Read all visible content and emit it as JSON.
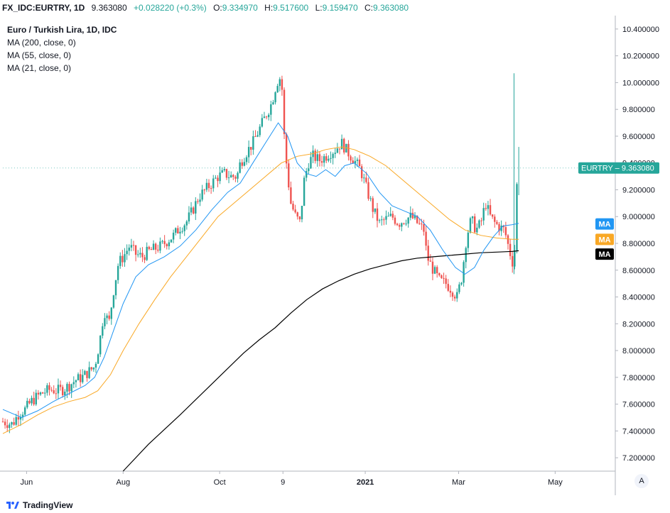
{
  "header": {
    "symbol": "FX_IDC:EURTRY, 1D",
    "last": "9.363080",
    "change": "+0.028220 (+0.3%)",
    "open_label": "O:",
    "open": "9.334970",
    "high_label": "H:",
    "high": "9.517600",
    "low_label": "L:",
    "low": "9.159470",
    "close_label": "C:",
    "close": "9.363080"
  },
  "legend": {
    "title": "Euro / Turkish Lira, 1D, IDC",
    "items": [
      "MA (200, close, 0)",
      "MA (55, close, 0)",
      "MA (21, close, 0)"
    ]
  },
  "footer": {
    "brand": "TradingView",
    "auto_btn": "A"
  },
  "colors": {
    "up": "#26a69a",
    "down": "#ef5350",
    "ma21": "#2196f3",
    "ma55": "#f9a825",
    "ma200": "#000000"
  },
  "chart_data": {
    "type": "candlestick",
    "ylim": [
      7.1,
      10.5
    ],
    "y_ticks": [
      "7.200000",
      "7.400000",
      "7.600000",
      "7.800000",
      "8.000000",
      "8.200000",
      "8.400000",
      "8.600000",
      "8.800000",
      "9.000000",
      "9.200000",
      "9.400000",
      "9.600000",
      "9.800000",
      "10.000000",
      "10.200000",
      "10.400000"
    ],
    "x_ticks": [
      {
        "label": "Jun",
        "day": 23
      },
      {
        "label": "Aug",
        "day": 84
      },
      {
        "label": "Oct",
        "day": 145
      },
      {
        "label": "9",
        "day": 185
      },
      {
        "label": "2021",
        "day": 237
      },
      {
        "label": "Mar",
        "day": 296
      },
      {
        "label": "May",
        "day": 357
      }
    ],
    "x_range": [
      8,
      395
    ],
    "last_price": {
      "label": "EURTRY",
      "value": "9.363080",
      "y": 9.363
    },
    "ma_tags": [
      {
        "label": "MA",
        "y": 8.945,
        "color": "#2196f3"
      },
      {
        "label": "MA",
        "y": 8.83,
        "color": "#f9a825"
      },
      {
        "label": "MA",
        "y": 8.72,
        "color": "#000000"
      }
    ],
    "price_path": [
      [
        8,
        7.47
      ],
      [
        14,
        7.45
      ],
      [
        18,
        7.53
      ],
      [
        22,
        7.56
      ],
      [
        26,
        7.62
      ],
      [
        30,
        7.66
      ],
      [
        34,
        7.69
      ],
      [
        38,
        7.71
      ],
      [
        42,
        7.7
      ],
      [
        46,
        7.71
      ],
      [
        50,
        7.74
      ],
      [
        54,
        7.78
      ],
      [
        58,
        7.8
      ],
      [
        62,
        7.84
      ],
      [
        66,
        7.88
      ],
      [
        69,
        8.05
      ],
      [
        72,
        8.3
      ],
      [
        75,
        8.2
      ],
      [
        78,
        8.45
      ],
      [
        81,
        8.65
      ],
      [
        84,
        8.7
      ],
      [
        88,
        8.78
      ],
      [
        92,
        8.72
      ],
      [
        96,
        8.7
      ],
      [
        100,
        8.74
      ],
      [
        104,
        8.76
      ],
      [
        108,
        8.78
      ],
      [
        112,
        8.82
      ],
      [
        116,
        8.86
      ],
      [
        120,
        8.92
      ],
      [
        124,
        8.96
      ],
      [
        128,
        9.05
      ],
      [
        132,
        9.15
      ],
      [
        136,
        9.2
      ],
      [
        140,
        9.25
      ],
      [
        144,
        9.3
      ],
      [
        148,
        9.32
      ],
      [
        152,
        9.3
      ],
      [
        156,
        9.3
      ],
      [
        158,
        9.4
      ],
      [
        162,
        9.48
      ],
      [
        166,
        9.55
      ],
      [
        170,
        9.65
      ],
      [
        174,
        9.75
      ],
      [
        178,
        9.85
      ],
      [
        181,
        10.0
      ],
      [
        184,
        10.05
      ],
      [
        186,
        9.55
      ],
      [
        188,
        9.3
      ],
      [
        190,
        9.1
      ],
      [
        193,
        9.0
      ],
      [
        196,
        8.95
      ],
      [
        198,
        9.25
      ],
      [
        201,
        9.4
      ],
      [
        204,
        9.45
      ],
      [
        208,
        9.42
      ],
      [
        212,
        9.45
      ],
      [
        215,
        9.48
      ],
      [
        218,
        9.5
      ],
      [
        222,
        9.55
      ],
      [
        226,
        9.48
      ],
      [
        230,
        9.42
      ],
      [
        234,
        9.35
      ],
      [
        238,
        9.2
      ],
      [
        242,
        9.05
      ],
      [
        246,
        8.95
      ],
      [
        250,
        8.98
      ],
      [
        254,
        9.0
      ],
      [
        258,
        8.95
      ],
      [
        262,
        8.98
      ],
      [
        266,
        9.0
      ],
      [
        270,
        8.95
      ],
      [
        274,
        8.9
      ],
      [
        276,
        8.7
      ],
      [
        280,
        8.6
      ],
      [
        284,
        8.52
      ],
      [
        288,
        8.5
      ],
      [
        292,
        8.45
      ],
      [
        295,
        8.4
      ],
      [
        298,
        8.55
      ],
      [
        301,
        8.85
      ],
      [
        304,
        8.98
      ],
      [
        307,
        8.9
      ],
      [
        310,
        8.95
      ],
      [
        313,
        9.1
      ],
      [
        316,
        9.0
      ],
      [
        319,
        8.95
      ],
      [
        322,
        8.92
      ],
      [
        325,
        8.9
      ],
      [
        328,
        8.75
      ],
      [
        331,
        8.62
      ],
      [
        333,
        9.3
      ],
      [
        334,
        9.36
      ]
    ],
    "ma21_path": [
      [
        8,
        7.56
      ],
      [
        20,
        7.5
      ],
      [
        30,
        7.55
      ],
      [
        40,
        7.62
      ],
      [
        50,
        7.68
      ],
      [
        60,
        7.74
      ],
      [
        66,
        7.8
      ],
      [
        72,
        7.95
      ],
      [
        78,
        8.15
      ],
      [
        84,
        8.35
      ],
      [
        92,
        8.55
      ],
      [
        100,
        8.64
      ],
      [
        110,
        8.7
      ],
      [
        120,
        8.78
      ],
      [
        130,
        8.9
      ],
      [
        140,
        9.05
      ],
      [
        150,
        9.18
      ],
      [
        158,
        9.25
      ],
      [
        166,
        9.4
      ],
      [
        174,
        9.55
      ],
      [
        182,
        9.7
      ],
      [
        188,
        9.6
      ],
      [
        194,
        9.4
      ],
      [
        200,
        9.32
      ],
      [
        206,
        9.3
      ],
      [
        212,
        9.35
      ],
      [
        218,
        9.3
      ],
      [
        224,
        9.38
      ],
      [
        230,
        9.4
      ],
      [
        238,
        9.32
      ],
      [
        246,
        9.18
      ],
      [
        254,
        9.08
      ],
      [
        262,
        9.04
      ],
      [
        270,
        9.0
      ],
      [
        278,
        8.9
      ],
      [
        286,
        8.75
      ],
      [
        294,
        8.62
      ],
      [
        300,
        8.57
      ],
      [
        306,
        8.62
      ],
      [
        312,
        8.75
      ],
      [
        318,
        8.85
      ],
      [
        324,
        8.93
      ],
      [
        330,
        8.94
      ],
      [
        334,
        8.95
      ]
    ],
    "ma55_path": [
      [
        8,
        7.38
      ],
      [
        20,
        7.45
      ],
      [
        30,
        7.52
      ],
      [
        40,
        7.58
      ],
      [
        50,
        7.62
      ],
      [
        60,
        7.65
      ],
      [
        68,
        7.7
      ],
      [
        76,
        7.82
      ],
      [
        84,
        8.0
      ],
      [
        94,
        8.2
      ],
      [
        104,
        8.38
      ],
      [
        114,
        8.55
      ],
      [
        124,
        8.7
      ],
      [
        134,
        8.85
      ],
      [
        144,
        9.0
      ],
      [
        154,
        9.1
      ],
      [
        164,
        9.2
      ],
      [
        174,
        9.3
      ],
      [
        184,
        9.4
      ],
      [
        194,
        9.45
      ],
      [
        204,
        9.47
      ],
      [
        212,
        9.5
      ],
      [
        222,
        9.52
      ],
      [
        230,
        9.5
      ],
      [
        240,
        9.45
      ],
      [
        250,
        9.38
      ],
      [
        260,
        9.28
      ],
      [
        270,
        9.18
      ],
      [
        280,
        9.08
      ],
      [
        290,
        8.98
      ],
      [
        300,
        8.9
      ],
      [
        310,
        8.86
      ],
      [
        320,
        8.84
      ],
      [
        330,
        8.83
      ],
      [
        334,
        8.83
      ]
    ],
    "ma200_path": [
      [
        84,
        7.1
      ],
      [
        100,
        7.3
      ],
      [
        120,
        7.52
      ],
      [
        140,
        7.75
      ],
      [
        160,
        7.98
      ],
      [
        170,
        8.08
      ],
      [
        180,
        8.17
      ],
      [
        190,
        8.28
      ],
      [
        200,
        8.38
      ],
      [
        210,
        8.46
      ],
      [
        220,
        8.52
      ],
      [
        230,
        8.57
      ],
      [
        240,
        8.61
      ],
      [
        250,
        8.64
      ],
      [
        260,
        8.67
      ],
      [
        270,
        8.69
      ],
      [
        280,
        8.7
      ],
      [
        290,
        8.71
      ],
      [
        300,
        8.72
      ],
      [
        310,
        8.73
      ],
      [
        320,
        8.735
      ],
      [
        330,
        8.74
      ],
      [
        334,
        8.745
      ]
    ],
    "spike": {
      "day": 331,
      "high": 10.07,
      "low": 8.57
    },
    "spike2": {
      "day": 334,
      "high": 9.52,
      "low": 9.16
    }
  }
}
